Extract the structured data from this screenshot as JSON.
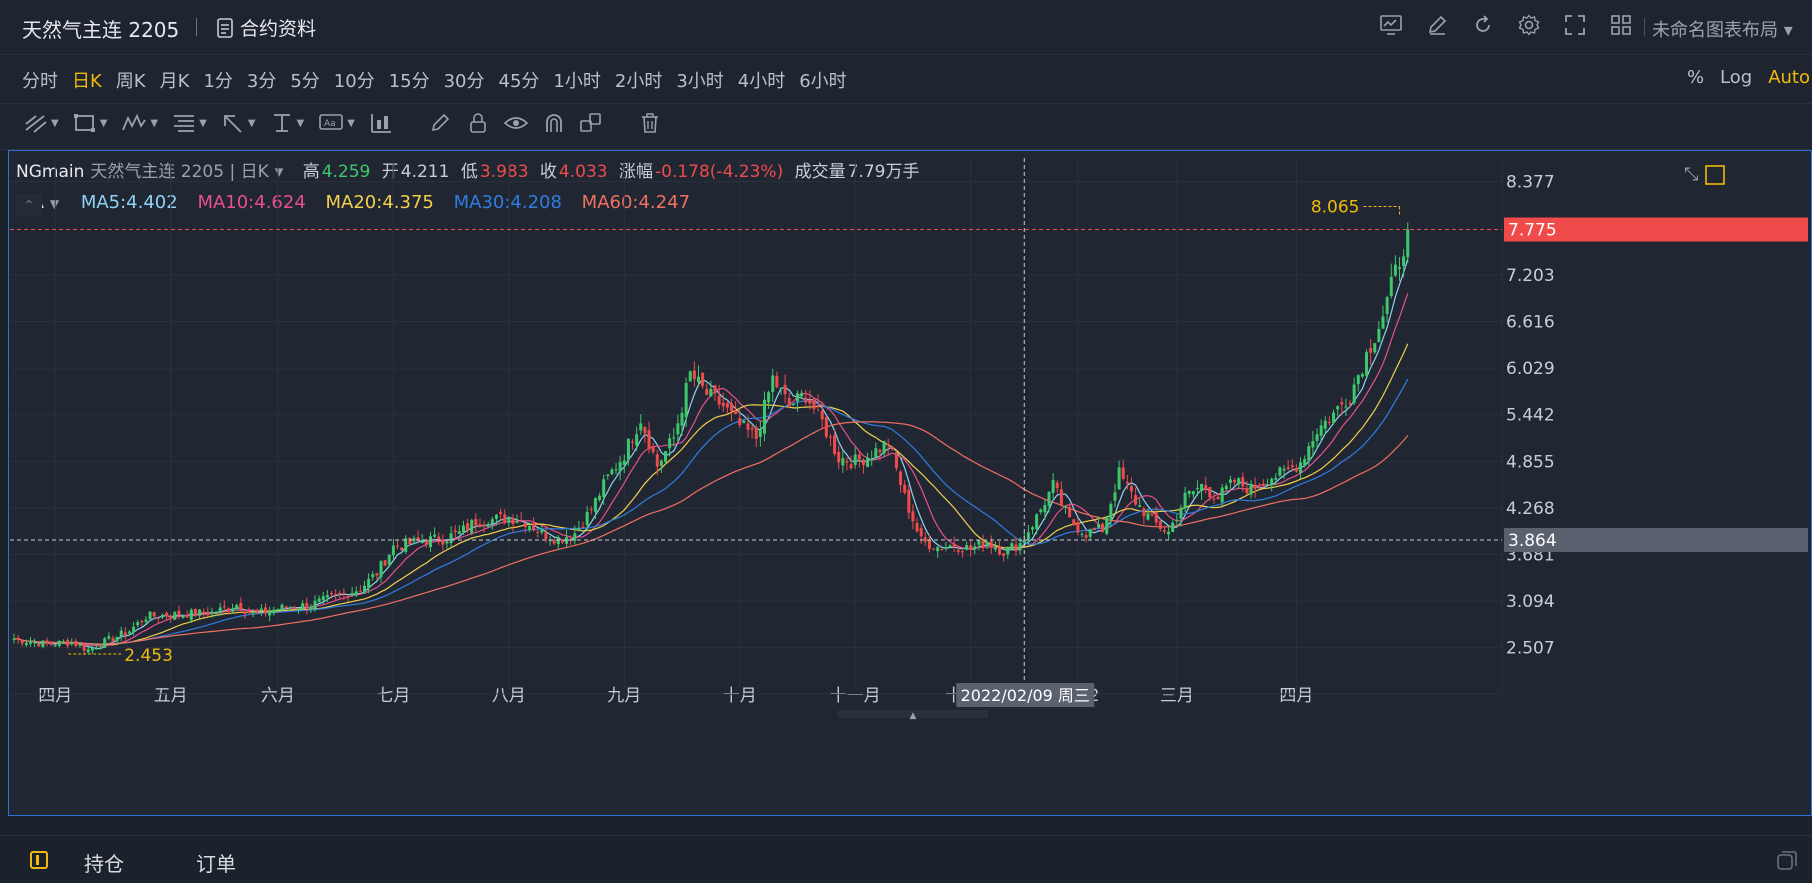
{
  "header": {
    "title": "天然气主连 2205",
    "contract_info": "合约资料",
    "layout_name": "未命名图表布局"
  },
  "periods": [
    "分时",
    "日K",
    "周K",
    "月K",
    "1分",
    "3分",
    "5分",
    "10分",
    "15分",
    "30分",
    "45分",
    "1小时",
    "2小时",
    "3小时",
    "4小时",
    "6小时"
  ],
  "active_period": "日K",
  "scale_buttons": [
    "%",
    "Log",
    "Auto"
  ],
  "active_scale": "Auto",
  "quote": {
    "symbol": "NGmain",
    "name": "天然气主连 2205 | 日K",
    "high_label": "高",
    "high": "4.259",
    "open_label": "开",
    "open": "4.211",
    "low_label": "低",
    "low": "3.983",
    "close_label": "收",
    "close": "4.033",
    "change_label": "涨幅",
    "change": "-0.178(-4.23%)",
    "volume_label": "成交量",
    "volume": "7.79万手"
  },
  "ma_legend": {
    "label": "MA",
    "ma5": "MA5:4.402",
    "ma10": "MA10:4.624",
    "ma20": "MA20:4.375",
    "ma30": "MA30:4.208",
    "ma60": "MA60:4.247"
  },
  "bottom_tabs": [
    "持仓",
    "订单"
  ],
  "colors": {
    "up": "#3ec86b",
    "down": "#f04b4b",
    "accent": "#f0b90b",
    "ma5": "#8fd3f4",
    "ma10": "#e8508c",
    "ma20": "#f2d04b",
    "ma30": "#2f7de1",
    "ma60": "#f07060",
    "last_price_bg": "#f04b4b",
    "crosshair_bg": "#5a6270"
  },
  "chart_data": {
    "type": "candlestick",
    "y_ticks": [
      2.507,
      3.094,
      3.681,
      4.268,
      4.855,
      5.442,
      6.029,
      6.616,
      7.203,
      8.377
    ],
    "ylim": [
      2.1,
      8.55
    ],
    "x_month_labels": [
      "四月",
      "五月",
      "六月",
      "七月",
      "八月",
      "九月",
      "十月",
      "十一月",
      "十二月",
      "2022",
      "三月",
      "四月"
    ],
    "last_price": 7.775,
    "crosshair_price": 3.864,
    "crosshair_date": "2022/02/09 周三",
    "max_marker": 8.065,
    "min_marker": 2.453,
    "close_points": [
      [
        0,
        2.62
      ],
      [
        8,
        2.55
      ],
      [
        14,
        2.58
      ],
      [
        18,
        2.48
      ],
      [
        22,
        2.58
      ],
      [
        28,
        2.72
      ],
      [
        32,
        2.9
      ],
      [
        40,
        2.93
      ],
      [
        48,
        2.95
      ],
      [
        54,
        3.05
      ],
      [
        58,
        2.92
      ],
      [
        64,
        3.0
      ],
      [
        72,
        3.05
      ],
      [
        78,
        3.15
      ],
      [
        84,
        3.25
      ],
      [
        88,
        3.45
      ],
      [
        92,
        3.78
      ],
      [
        96,
        3.82
      ],
      [
        100,
        3.86
      ],
      [
        104,
        3.88
      ],
      [
        108,
        3.95
      ],
      [
        112,
        4.1
      ],
      [
        116,
        4.12
      ],
      [
        120,
        4.15
      ],
      [
        124,
        4.1
      ],
      [
        128,
        3.95
      ],
      [
        132,
        3.88
      ],
      [
        136,
        3.95
      ],
      [
        140,
        4.25
      ],
      [
        144,
        4.65
      ],
      [
        148,
        4.95
      ],
      [
        152,
        5.4
      ],
      [
        156,
        4.8
      ],
      [
        160,
        5.15
      ],
      [
        164,
        5.95
      ],
      [
        168,
        5.7
      ],
      [
        172,
        5.55
      ],
      [
        176,
        5.3
      ],
      [
        180,
        5.15
      ],
      [
        184,
        5.9
      ],
      [
        188,
        5.55
      ],
      [
        192,
        5.7
      ],
      [
        196,
        5.35
      ],
      [
        200,
        4.9
      ],
      [
        204,
        4.85
      ],
      [
        208,
        4.95
      ],
      [
        212,
        5.1
      ],
      [
        216,
        4.4
      ],
      [
        220,
        3.85
      ],
      [
        224,
        3.78
      ],
      [
        228,
        3.8
      ],
      [
        232,
        3.75
      ],
      [
        236,
        3.85
      ],
      [
        240,
        3.72
      ],
      [
        244,
        3.82
      ],
      [
        248,
        4.15
      ],
      [
        252,
        4.55
      ],
      [
        256,
        4.1
      ],
      [
        260,
        3.95
      ],
      [
        264,
        4.0
      ],
      [
        268,
        4.7
      ],
      [
        272,
        4.35
      ],
      [
        276,
        4.1
      ],
      [
        280,
        3.96
      ],
      [
        284,
        4.4
      ],
      [
        288,
        4.55
      ],
      [
        292,
        4.4
      ],
      [
        296,
        4.6
      ],
      [
        300,
        4.5
      ],
      [
        304,
        4.65
      ],
      [
        308,
        4.7
      ],
      [
        312,
        4.85
      ],
      [
        316,
        5.25
      ],
      [
        320,
        5.45
      ],
      [
        324,
        5.7
      ],
      [
        328,
        6.2
      ],
      [
        332,
        6.7
      ],
      [
        336,
        7.4
      ],
      [
        338,
        7.775
      ]
    ],
    "ma_series": [
      {
        "name": "MA5",
        "key": "ma5"
      },
      {
        "name": "MA10",
        "key": "ma10"
      },
      {
        "name": "MA20",
        "key": "ma20"
      },
      {
        "name": "MA30",
        "key": "ma30"
      },
      {
        "name": "MA60",
        "key": "ma60"
      }
    ]
  }
}
